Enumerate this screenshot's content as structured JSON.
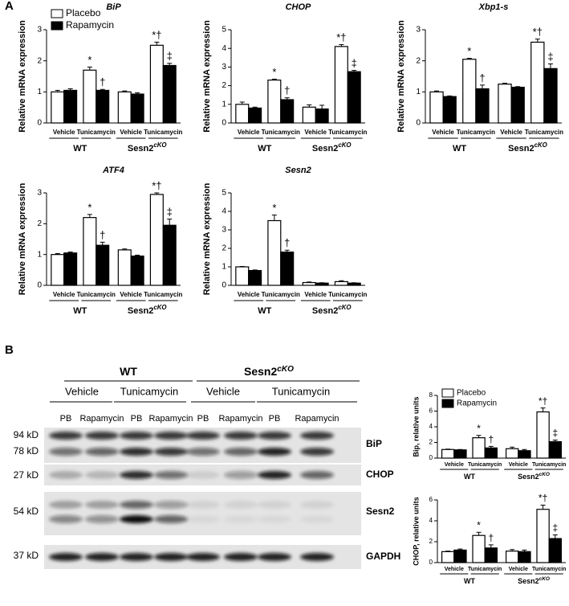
{
  "panels": [
    "A",
    "B"
  ],
  "chart_data": [
    {
      "type": "bar",
      "title": "BiP",
      "ylabel": "Relative mRNA expression",
      "legend": true,
      "categories": [
        "Vehicle",
        "Tunicamycin",
        "Vehicle",
        "Tunicamycin"
      ],
      "groups": [
        {
          "name": "WT"
        },
        {
          "name": "Sesn2",
          "sup": "cKO"
        }
      ],
      "series": [
        {
          "name": "Placebo",
          "color": "#ffffff",
          "values": [
            1.0,
            1.7,
            1.0,
            2.5
          ],
          "errors": [
            0.05,
            0.1,
            0.03,
            0.1
          ],
          "annotations": [
            null,
            "*",
            null,
            "*†"
          ]
        },
        {
          "name": "Rapamycin",
          "color": "#000000",
          "values": [
            1.05,
            1.05,
            0.93,
            1.85
          ],
          "errors": [
            0.05,
            0.03,
            0.04,
            0.07
          ],
          "annotations": [
            null,
            "†",
            null,
            "‡"
          ]
        }
      ],
      "ylim": [
        0,
        3
      ],
      "yticks": [
        0,
        1,
        2,
        3
      ]
    },
    {
      "type": "bar",
      "title": "CHOP",
      "ylabel": "Relative mRNA expression",
      "legend": false,
      "categories": [
        "Vehicle",
        "Tunicamycin",
        "Vehicle",
        "Tunicamycin"
      ],
      "groups": [
        {
          "name": "WT"
        },
        {
          "name": "Sesn2",
          "sup": "cKO"
        }
      ],
      "series": [
        {
          "name": "Placebo",
          "color": "#ffffff",
          "values": [
            1.0,
            2.3,
            0.85,
            4.1
          ],
          "errors": [
            0.12,
            0.05,
            0.12,
            0.1
          ],
          "annotations": [
            null,
            "*",
            null,
            "*†"
          ]
        },
        {
          "name": "Rapamycin",
          "color": "#000000",
          "values": [
            0.8,
            1.25,
            0.75,
            2.75
          ],
          "errors": [
            0.05,
            0.1,
            0.2,
            0.07
          ],
          "annotations": [
            null,
            "†",
            null,
            "‡"
          ]
        }
      ],
      "ylim": [
        0,
        5
      ],
      "yticks": [
        0,
        1,
        2,
        3,
        4,
        5
      ]
    },
    {
      "type": "bar",
      "title": "Xbp1-s",
      "ylabel": "Relative mRNA expression",
      "legend": false,
      "categories": [
        "Vehicle",
        "Tunicamycin",
        "Vehicle",
        "Tunicamycin"
      ],
      "groups": [
        {
          "name": "WT"
        },
        {
          "name": "Sesn2",
          "sup": "cKO"
        }
      ],
      "series": [
        {
          "name": "Placebo",
          "color": "#ffffff",
          "values": [
            1.0,
            2.05,
            1.25,
            2.6
          ],
          "errors": [
            0.03,
            0.03,
            0.03,
            0.1
          ],
          "annotations": [
            null,
            "*",
            null,
            "*†"
          ]
        },
        {
          "name": "Rapamycin",
          "color": "#000000",
          "values": [
            0.85,
            1.1,
            1.15,
            1.75
          ],
          "errors": [
            0.02,
            0.12,
            0.02,
            0.15
          ],
          "annotations": [
            null,
            "†",
            null,
            "‡"
          ]
        }
      ],
      "ylim": [
        0,
        3
      ],
      "yticks": [
        0,
        1,
        2,
        3
      ]
    },
    {
      "type": "bar",
      "title": "ATF4",
      "ylabel": "Relative mRNA expression",
      "legend": false,
      "categories": [
        "Vehicle",
        "Tunicamycin",
        "Vehicle",
        "Tunicamycin"
      ],
      "groups": [
        {
          "name": "WT"
        },
        {
          "name": "Sesn2",
          "sup": "cKO"
        }
      ],
      "series": [
        {
          "name": "Placebo",
          "color": "#ffffff",
          "values": [
            1.0,
            2.2,
            1.15,
            2.95
          ],
          "errors": [
            0.03,
            0.1,
            0.03,
            0.05
          ],
          "annotations": [
            null,
            "*",
            null,
            "*†"
          ]
        },
        {
          "name": "Rapamycin",
          "color": "#000000",
          "values": [
            1.05,
            1.3,
            0.95,
            1.95
          ],
          "errors": [
            0.03,
            0.1,
            0.03,
            0.2
          ],
          "annotations": [
            null,
            "†",
            null,
            "‡"
          ]
        }
      ],
      "ylim": [
        0,
        3
      ],
      "yticks": [
        0,
        1,
        2,
        3
      ]
    },
    {
      "type": "bar",
      "title": "Sesn2",
      "ylabel": "Relative mRNA expression",
      "legend": false,
      "categories": [
        "Vehicle",
        "Tunicamycin",
        "Vehicle",
        "Tunicamycin"
      ],
      "groups": [
        {
          "name": "WT"
        },
        {
          "name": "Sesn2",
          "sup": "cKO"
        }
      ],
      "series": [
        {
          "name": "Placebo",
          "color": "#ffffff",
          "values": [
            1.0,
            3.5,
            0.15,
            0.2
          ],
          "errors": [
            0.02,
            0.3,
            0.03,
            0.05
          ],
          "annotations": [
            null,
            "*",
            null,
            null
          ]
        },
        {
          "name": "Rapamycin",
          "color": "#000000",
          "values": [
            0.8,
            1.8,
            0.12,
            0.12
          ],
          "errors": [
            0.03,
            0.1,
            0.02,
            0.02
          ],
          "annotations": [
            null,
            "†",
            null,
            null
          ]
        }
      ],
      "ylim": [
        0,
        5
      ],
      "yticks": [
        0,
        1,
        2,
        3,
        4,
        5
      ]
    },
    {
      "type": "bar",
      "ylabel": "Bip, relative units",
      "legend": true,
      "categories": [
        "Vehicle",
        "Tunicamycin",
        "Vehicle",
        "Tunicamycin"
      ],
      "groups": [
        {
          "name": "WT"
        },
        {
          "name": "Sesn2",
          "sup": "cKO"
        }
      ],
      "series": [
        {
          "name": "Placebo",
          "color": "#ffffff",
          "values": [
            1.1,
            2.6,
            1.2,
            5.9
          ],
          "errors": [
            0.05,
            0.3,
            0.2,
            0.5
          ],
          "annotations": [
            null,
            "*",
            null,
            "*†"
          ]
        },
        {
          "name": "Rapamycin",
          "color": "#000000",
          "values": [
            1.05,
            1.3,
            0.95,
            2.1
          ],
          "errors": [
            0.05,
            0.2,
            0.15,
            0.2
          ],
          "annotations": [
            null,
            "†",
            null,
            "‡"
          ]
        }
      ],
      "ylim": [
        0,
        8
      ],
      "yticks": [
        0,
        2,
        4,
        6,
        8
      ]
    },
    {
      "type": "bar",
      "ylabel": "CHOP, relative units",
      "legend": false,
      "categories": [
        "Vehicle",
        "Tunicamycin",
        "Vehicle",
        "Tunicamycin"
      ],
      "groups": [
        {
          "name": "WT"
        },
        {
          "name": "Sesn2",
          "sup": "cKO"
        }
      ],
      "series": [
        {
          "name": "Placebo",
          "color": "#ffffff",
          "values": [
            1.05,
            2.6,
            1.1,
            5.1
          ],
          "errors": [
            0.05,
            0.3,
            0.15,
            0.4
          ],
          "annotations": [
            null,
            "*",
            null,
            "*†"
          ]
        },
        {
          "name": "Rapamycin",
          "color": "#000000",
          "values": [
            1.2,
            1.4,
            1.05,
            2.3
          ],
          "errors": [
            0.1,
            0.3,
            0.15,
            0.35
          ],
          "annotations": [
            null,
            "†",
            null,
            "‡"
          ]
        }
      ],
      "ylim": [
        0,
        6
      ],
      "yticks": [
        0,
        2,
        4,
        6
      ]
    }
  ],
  "blot": {
    "headers": [
      {
        "name": "WT"
      },
      {
        "name": "Sesn2",
        "sup": "cKO"
      }
    ],
    "conditions": [
      "Vehicle",
      "Tunicamycin",
      "Vehicle",
      "Tunicamycin"
    ],
    "lanes": [
      "PB",
      "Rapamycin",
      "PB",
      "Rapamycin",
      "PB",
      "Rapamycin",
      "PB",
      "Rapamycin"
    ],
    "rows": [
      {
        "label": "BiP",
        "markers": [
          "94 kD",
          "78 kD"
        ]
      },
      {
        "label": "CHOP",
        "markers": [
          "27 kD"
        ]
      },
      {
        "label": "Sesn2",
        "markers": [
          "54 kD"
        ]
      },
      {
        "label": "GAPDH",
        "markers": [
          "37 kD"
        ]
      }
    ]
  }
}
